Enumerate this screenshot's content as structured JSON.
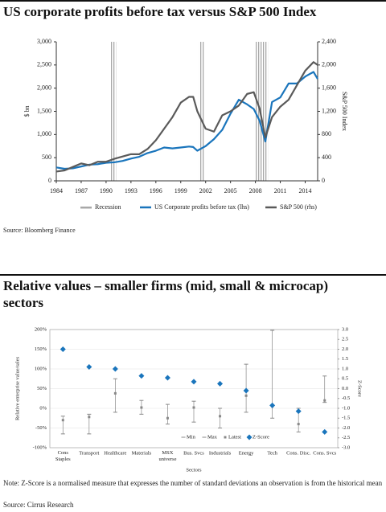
{
  "chart_data": [
    {
      "type": "line",
      "title": "US corporate profits before tax versus S&P 500 Index",
      "ylabel": "$ bn",
      "y2label": "S&P 500 Index",
      "source": "Source: Bloomberg Finance",
      "recession_label": "Recession",
      "recession_color": "#a8a8a8",
      "recessions": [
        [
          1990.5,
          1991.2
        ],
        [
          2001.2,
          2001.9
        ],
        [
          2007.9,
          2009.5
        ]
      ],
      "x": [
        1984,
        1985,
        1986,
        1987,
        1988,
        1989,
        1990,
        1991,
        1992,
        1993,
        1994,
        1995,
        1996,
        1997,
        1998,
        1999,
        2000,
        2000.5,
        2001,
        2002,
        2003,
        2004,
        2005,
        2006,
        2007,
        2007.8,
        2008.5,
        2009.2,
        2010,
        2011,
        2012,
        2013,
        2014,
        2015,
        2015.5
      ],
      "series": [
        {
          "name": "US Corporate profits before tax (lhs)",
          "color": "#1a75bc",
          "values": [
            290,
            260,
            270,
            310,
            350,
            360,
            390,
            400,
            430,
            480,
            520,
            600,
            650,
            720,
            700,
            720,
            740,
            730,
            650,
            750,
            900,
            1100,
            1450,
            1750,
            1650,
            1550,
            1300,
            850,
            1700,
            1800,
            2100,
            2100,
            2250,
            2350,
            2200
          ]
        },
        {
          "name": "S&P 500 (rhs)",
          "color": "#5a5a5a",
          "axis": "y2",
          "values": [
            160,
            180,
            240,
            300,
            270,
            330,
            330,
            380,
            420,
            460,
            460,
            550,
            700,
            900,
            1100,
            1350,
            1450,
            1450,
            1200,
            900,
            850,
            1130,
            1200,
            1300,
            1500,
            1530,
            1250,
            750,
            1100,
            1280,
            1400,
            1650,
            1900,
            2050,
            2000
          ]
        }
      ],
      "xlim": [
        1984,
        2015.5
      ],
      "xticks": [
        1984,
        1987,
        1990,
        1993,
        1996,
        1999,
        2002,
        2005,
        2008,
        2011,
        2014
      ],
      "ylim": [
        0,
        3000
      ],
      "yticks": [
        0,
        500,
        {
          "value": 1000,
          "label": "1,000"
        },
        {
          "value": 1500,
          "label": "1,500"
        },
        {
          "value": 2000,
          "label": "2,000"
        },
        {
          "value": 2500,
          "label": "2,500"
        },
        {
          "value": 3000,
          "label": "3,000"
        }
      ],
      "y2lim": [
        0,
        2400
      ],
      "y2ticks": [
        0,
        400,
        800,
        {
          "value": 1200,
          "label": "1,200"
        },
        {
          "value": 1600,
          "label": "1,600"
        },
        {
          "value": 2000,
          "label": "2,000"
        },
        {
          "value": 2400,
          "label": "2,400"
        }
      ]
    },
    {
      "type": "range-dot",
      "title": "Relative values – smaller firms (mid, small & microcap) sectors",
      "xlabel": "Sectors",
      "ylabel": "Relative enterprise value/sales",
      "y2label": "Z-Score",
      "grid": true,
      "note": "Note: Z-Score is a normalised measure that expresses the number of standard deviations an observation is from the historical mean",
      "source": "Source: Cirrus Research",
      "categories": [
        "Cons Staples",
        "Transport",
        "Healthcare",
        "Materials",
        "MSX universe",
        "Bus. Svcs",
        "Industrials",
        "Energy",
        "Tech",
        "Cons. Disc.",
        "Cons. Svcs"
      ],
      "series": [
        {
          "name": "Min",
          "color": "#888888",
          "marker": "dash",
          "values": [
            -65,
            -65,
            -10,
            -15,
            -40,
            -35,
            -50,
            -10,
            -25,
            -60,
            15
          ]
        },
        {
          "name": "Max",
          "color": "#888888",
          "marker": "dash",
          "values": [
            -20,
            -15,
            75,
            20,
            10,
            18,
            0,
            112,
            198,
            0,
            82
          ]
        },
        {
          "name": "Latest",
          "color": "#888888",
          "marker": "square",
          "values": [
            -30,
            -22,
            38,
            2,
            -25,
            2,
            -20,
            32,
            5,
            -40,
            20
          ]
        },
        {
          "name": "Z-Score",
          "color": "#1a75bc",
          "marker": "diamond",
          "axis": "y2",
          "values": [
            2.0,
            1.1,
            1.0,
            0.65,
            0.55,
            0.35,
            0.25,
            -0.1,
            -0.85,
            -1.15,
            -2.2
          ]
        }
      ],
      "ylim": [
        -100,
        200
      ],
      "yticks": [
        {
          "value": -100,
          "label": "-100%"
        },
        {
          "value": -50,
          "label": "-50%"
        },
        {
          "value": 0,
          "label": "0%"
        },
        {
          "value": 50,
          "label": "50%"
        },
        {
          "value": 100,
          "label": "100%"
        },
        {
          "value": 150,
          "label": "150%"
        },
        {
          "value": 200,
          "label": "200%"
        }
      ],
      "y2lim": [
        -3,
        3
      ],
      "y2ticks": [
        {
          "value": -3,
          "label": "-3.0"
        },
        {
          "value": -2.5,
          "label": "-2.5"
        },
        {
          "value": -2,
          "label": "-2.0"
        },
        {
          "value": -1.5,
          "label": "-1.5"
        },
        {
          "value": -1,
          "label": "-1.0"
        },
        {
          "value": -0.5,
          "label": "-0.5"
        },
        {
          "value": 0,
          "label": "0.0"
        },
        {
          "value": 0.5,
          "label": "0.5"
        },
        {
          "value": 1,
          "label": "1.0"
        },
        {
          "value": 1.5,
          "label": "1.5"
        },
        {
          "value": 2,
          "label": "2.0"
        },
        {
          "value": 2.5,
          "label": "2.5"
        },
        {
          "value": 3,
          "label": "3.0"
        }
      ]
    }
  ]
}
